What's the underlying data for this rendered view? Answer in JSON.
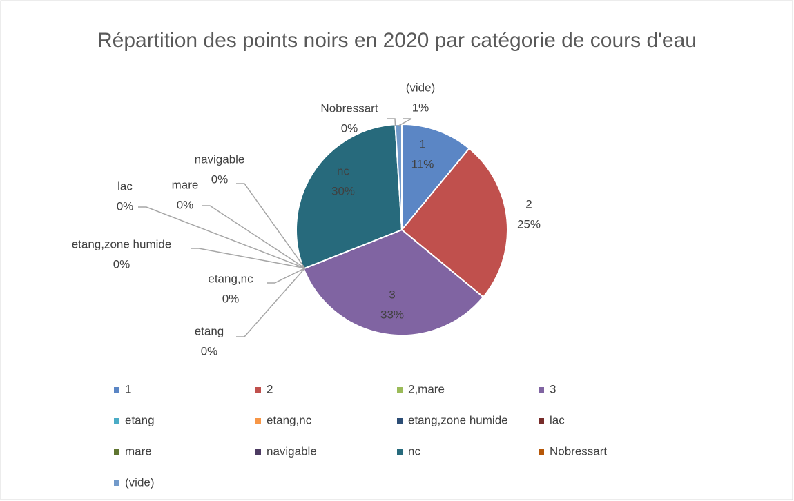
{
  "chart_data": {
    "type": "pie",
    "title": "Répartition des points noirs en 2020 par catégorie de cours d'eau",
    "categories": [
      "1",
      "2",
      "2,mare",
      "3",
      "etang",
      "etang,nc",
      "etang,zone humide",
      "lac",
      "mare",
      "navigable",
      "nc",
      "Nobressart",
      "(vide)"
    ],
    "values": [
      11,
      25,
      0,
      33,
      0,
      0,
      0,
      0,
      0,
      0,
      30,
      0,
      1
    ],
    "value_labels": [
      "11%",
      "25%",
      "0%",
      "33%",
      "0%",
      "0%",
      "0%",
      "0%",
      "0%",
      "0%",
      "30%",
      "0%",
      "1%"
    ],
    "colors": [
      "#5b86c5",
      "#c0504d",
      "#9bbb59",
      "#8064a2",
      "#4bacc6",
      "#f79646",
      "#2c4d75",
      "#772c2a",
      "#5f7530",
      "#4d3b62",
      "#276a7c",
      "#b65708",
      "#729aca"
    ],
    "legend": "bottom"
  }
}
